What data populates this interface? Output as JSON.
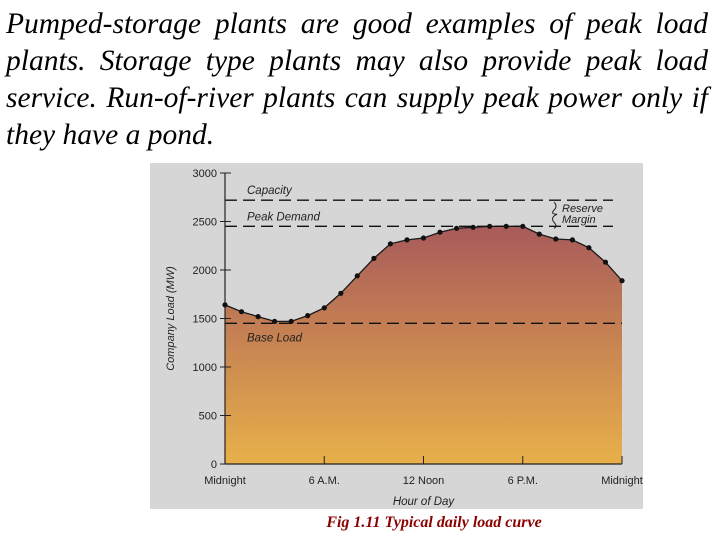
{
  "paragraph": "Pumped-storage plants are good examples of peak load plants. Storage type plants may also provide peak load service. Run-of-river plants can supply peak power only if they have a pond.",
  "caption": "Fig 1.11  Typical daily load curve",
  "chart_data": {
    "type": "area",
    "xlabel": "Hour of Day",
    "ylabel": "Company Load (MW)",
    "ylim": [
      0,
      3000
    ],
    "xlim": [
      0,
      24
    ],
    "x_ticks": [
      {
        "x": 0,
        "label": "Midnight"
      },
      {
        "x": 6,
        "label": "6 A.M."
      },
      {
        "x": 12,
        "label": "12 Noon"
      },
      {
        "x": 18,
        "label": "6 P.M."
      },
      {
        "x": 24,
        "label": "Midnight"
      }
    ],
    "y_ticks": [
      0,
      500,
      1000,
      1500,
      2000,
      2500,
      3000
    ],
    "series": [
      {
        "x": [
          0,
          1,
          2,
          3,
          4,
          5,
          6,
          7,
          8,
          9,
          10,
          11,
          12,
          13,
          14,
          15,
          16,
          17,
          18,
          19,
          20,
          21,
          22,
          23,
          24
        ],
        "values": [
          1640,
          1570,
          1520,
          1470,
          1470,
          1530,
          1610,
          1760,
          1940,
          2120,
          2270,
          2310,
          2330,
          2390,
          2430,
          2440,
          2450,
          2450,
          2450,
          2370,
          2320,
          2310,
          2230,
          2080,
          1890
        ]
      }
    ],
    "reference_lines": [
      {
        "label": "Capacity",
        "value": 2720
      },
      {
        "label": "Peak Demand",
        "value": 2450
      },
      {
        "label": "Base Load",
        "value": 1450
      }
    ],
    "annotations": [
      "Reserve",
      "Margin"
    ],
    "fill_gradient": {
      "top": "#a85a5a",
      "bottom": "#e8b04a"
    },
    "grid": false
  }
}
